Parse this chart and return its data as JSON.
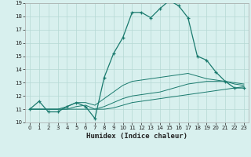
{
  "xlabel": "Humidex (Indice chaleur)",
  "x_values": [
    0,
    1,
    2,
    3,
    4,
    5,
    6,
    7,
    8,
    9,
    10,
    11,
    12,
    13,
    14,
    15,
    16,
    17,
    18,
    19,
    20,
    21,
    22,
    23
  ],
  "y_main": [
    11,
    11.6,
    10.8,
    10.8,
    11.2,
    11.5,
    11.2,
    10.3,
    13.4,
    15.2,
    16.4,
    18.3,
    18.3,
    17.9,
    18.6,
    19.2,
    18.8,
    17.9,
    15.0,
    14.7,
    13.8,
    13.1,
    12.6,
    12.6
  ],
  "y_line2": [
    11,
    11,
    11,
    11,
    11,
    11,
    11,
    11,
    11,
    11.1,
    11.3,
    11.5,
    11.6,
    11.7,
    11.8,
    11.9,
    12.0,
    12.1,
    12.2,
    12.3,
    12.4,
    12.5,
    12.6,
    12.7
  ],
  "y_line3": [
    11,
    11,
    11,
    11,
    11,
    11.2,
    11.3,
    11,
    11.2,
    11.5,
    11.8,
    12.0,
    12.1,
    12.2,
    12.3,
    12.5,
    12.7,
    12.9,
    13.0,
    13.1,
    13.1,
    13.1,
    12.9,
    12.8
  ],
  "y_line4": [
    11,
    11,
    11,
    11,
    11.2,
    11.5,
    11.5,
    11.3,
    11.8,
    12.3,
    12.8,
    13.1,
    13.2,
    13.3,
    13.4,
    13.5,
    13.6,
    13.7,
    13.5,
    13.3,
    13.2,
    13.1,
    13.0,
    12.9
  ],
  "line_color": "#1a7a6e",
  "bg_color": "#d8f0ee",
  "grid_color": "#b5d8d4",
  "ylim": [
    10,
    19
  ],
  "xlim": [
    -0.5,
    23.5
  ],
  "yticks": [
    10,
    11,
    12,
    13,
    14,
    15,
    16,
    17,
    18,
    19
  ],
  "xticks": [
    0,
    1,
    2,
    3,
    4,
    5,
    6,
    7,
    8,
    9,
    10,
    11,
    12,
    13,
    14,
    15,
    16,
    17,
    18,
    19,
    20,
    21,
    22,
    23
  ]
}
